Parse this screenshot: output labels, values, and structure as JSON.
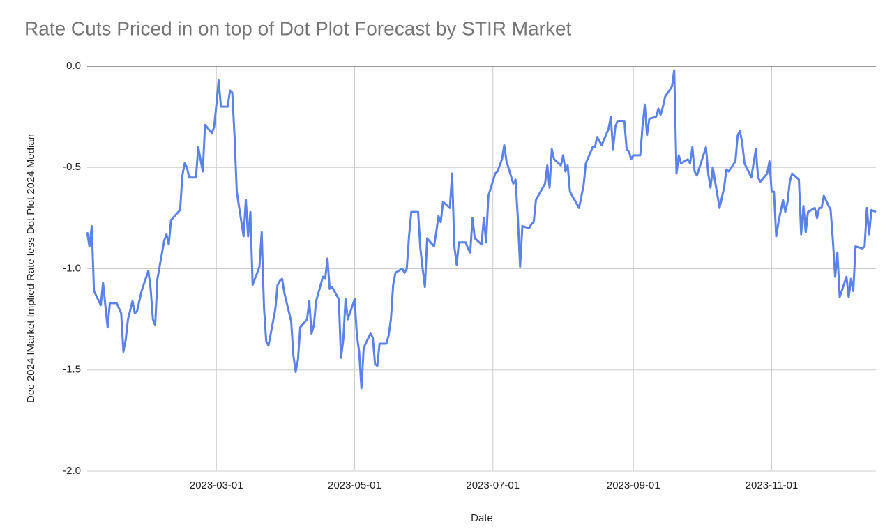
{
  "chart_data": {
    "type": "line",
    "title": "Rate Cuts Priced in on top of Dot Plot Forecast by STIR Market",
    "x_label": "Date",
    "y_label": "Dec 2024 IMarket Implied Rate less Dot Plot 2024 Median",
    "color": "#5b82e8",
    "grid": true,
    "xlim": [
      "2023-01-03",
      "2023-12-17"
    ],
    "xticks": [
      "2023-03-01",
      "2023-05-01",
      "2023-07-01",
      "2023-09-01",
      "2023-11-01"
    ],
    "ylim": [
      -2,
      0
    ],
    "yticks": [
      {
        "value": 0,
        "label": "0.0"
      },
      -0.5,
      {
        "value": -1,
        "label": "-1.0"
      },
      -1.5,
      {
        "value": -2,
        "label": "-2.0"
      }
    ],
    "x": [
      "2023-01-03",
      "2023-01-04",
      "2023-01-05",
      "2023-01-06",
      "2023-01-09",
      "2023-01-10",
      "2023-01-12",
      "2023-01-13",
      "2023-01-16",
      "2023-01-18",
      "2023-01-19",
      "2023-01-20",
      "2023-01-21",
      "2023-01-23",
      "2023-01-24",
      "2023-01-25",
      "2023-01-27",
      "2023-01-30",
      "2023-01-31",
      "2023-02-01",
      "2023-02-02",
      "2023-02-03",
      "2023-02-06",
      "2023-02-07",
      "2023-02-08",
      "2023-02-09",
      "2023-02-13",
      "2023-02-14",
      "2023-02-15",
      "2023-02-16",
      "2023-02-17",
      "2023-02-20",
      "2023-02-21",
      "2023-02-23",
      "2023-02-24",
      "2023-02-27",
      "2023-02-28",
      "2023-03-01",
      "2023-03-02",
      "2023-03-03",
      "2023-03-06",
      "2023-03-07",
      "2023-03-08",
      "2023-03-09",
      "2023-03-10",
      "2023-03-13",
      "2023-03-14",
      "2023-03-15",
      "2023-03-16",
      "2023-03-17",
      "2023-03-20",
      "2023-03-21",
      "2023-03-22",
      "2023-03-23",
      "2023-03-24",
      "2023-03-27",
      "2023-03-28",
      "2023-03-29",
      "2023-03-30",
      "2023-03-31",
      "2023-04-03",
      "2023-04-04",
      "2023-04-05",
      "2023-04-06",
      "2023-04-07",
      "2023-04-10",
      "2023-04-11",
      "2023-04-12",
      "2023-04-13",
      "2023-04-14",
      "2023-04-17",
      "2023-04-18",
      "2023-04-19",
      "2023-04-20",
      "2023-04-21",
      "2023-04-24",
      "2023-04-25",
      "2023-04-26",
      "2023-04-27",
      "2023-04-28",
      "2023-05-01",
      "2023-05-02",
      "2023-05-03",
      "2023-05-04",
      "2023-05-05",
      "2023-05-08",
      "2023-05-09",
      "2023-05-10",
      "2023-05-11",
      "2023-05-12",
      "2023-05-15",
      "2023-05-16",
      "2023-05-17",
      "2023-05-18",
      "2023-05-19",
      "2023-05-22",
      "2023-05-23",
      "2023-05-24",
      "2023-05-25",
      "2023-05-26",
      "2023-05-29",
      "2023-05-30",
      "2023-05-31",
      "2023-06-01",
      "2023-06-02",
      "2023-06-05",
      "2023-06-06",
      "2023-06-07",
      "2023-06-08",
      "2023-06-09",
      "2023-06-12",
      "2023-06-13",
      "2023-06-14",
      "2023-06-15",
      "2023-06-16",
      "2023-06-19",
      "2023-06-20",
      "2023-06-21",
      "2023-06-22",
      "2023-06-23",
      "2023-06-26",
      "2023-06-27",
      "2023-06-28",
      "2023-06-29",
      "2023-07-02",
      "2023-07-03",
      "2023-07-05",
      "2023-07-06",
      "2023-07-07",
      "2023-07-10",
      "2023-07-11",
      "2023-07-12",
      "2023-07-13",
      "2023-07-14",
      "2023-07-17",
      "2023-07-18",
      "2023-07-19",
      "2023-07-20",
      "2023-07-24",
      "2023-07-25",
      "2023-07-26",
      "2023-07-27",
      "2023-07-28",
      "2023-07-31",
      "2023-08-01",
      "2023-08-02",
      "2023-08-03",
      "2023-08-04",
      "2023-08-07",
      "2023-08-08",
      "2023-08-10",
      "2023-08-11",
      "2023-08-14",
      "2023-08-15",
      "2023-08-16",
      "2023-08-18",
      "2023-08-21",
      "2023-08-22",
      "2023-08-23",
      "2023-08-24",
      "2023-08-25",
      "2023-08-28",
      "2023-08-29",
      "2023-08-30",
      "2023-08-31",
      "2023-09-01",
      "2023-09-04",
      "2023-09-05",
      "2023-09-06",
      "2023-09-07",
      "2023-09-08",
      "2023-09-11",
      "2023-09-12",
      "2023-09-13",
      "2023-09-14",
      "2023-09-15",
      "2023-09-18",
      "2023-09-19",
      "2023-09-20",
      "2023-09-21",
      "2023-09-22",
      "2023-09-25",
      "2023-09-26",
      "2023-09-27",
      "2023-09-28",
      "2023-09-29",
      "2023-10-03",
      "2023-10-04",
      "2023-10-05",
      "2023-10-06",
      "2023-10-09",
      "2023-10-11",
      "2023-10-12",
      "2023-10-13",
      "2023-10-16",
      "2023-10-17",
      "2023-10-18",
      "2023-10-19",
      "2023-10-20",
      "2023-10-23",
      "2023-10-24",
      "2023-10-25",
      "2023-10-26",
      "2023-10-27",
      "2023-10-30",
      "2023-10-31",
      "2023-11-01",
      "2023-11-02",
      "2023-11-03",
      "2023-11-04",
      "2023-11-06",
      "2023-11-07",
      "2023-11-08",
      "2023-11-09",
      "2023-11-10",
      "2023-11-13",
      "2023-11-14",
      "2023-11-15",
      "2023-11-16",
      "2023-11-17",
      "2023-11-20",
      "2023-11-21",
      "2023-11-22",
      "2023-11-23",
      "2023-11-24",
      "2023-11-27",
      "2023-11-28",
      "2023-11-29",
      "2023-11-30",
      "2023-12-01",
      "2023-12-04",
      "2023-12-05",
      "2023-12-06",
      "2023-12-07",
      "2023-12-08",
      "2023-12-11",
      "2023-12-12",
      "2023-12-13",
      "2023-12-14",
      "2023-12-15",
      "2023-12-17"
    ],
    "values": [
      -0.82,
      -0.89,
      -0.79,
      -1.11,
      -1.18,
      -1.07,
      -1.29,
      -1.17,
      -1.17,
      -1.22,
      -1.41,
      -1.35,
      -1.25,
      -1.16,
      -1.22,
      -1.21,
      -1.11,
      -1.01,
      -1.1,
      -1.25,
      -1.28,
      -1.05,
      -0.86,
      -0.83,
      -0.88,
      -0.76,
      -0.71,
      -0.54,
      -0.48,
      -0.5,
      -0.55,
      -0.55,
      -0.4,
      -0.52,
      -0.29,
      -0.33,
      -0.3,
      -0.19,
      -0.07,
      -0.2,
      -0.2,
      -0.12,
      -0.13,
      -0.34,
      -0.62,
      -0.84,
      -0.66,
      -0.84,
      -0.72,
      -1.08,
      -0.99,
      -0.82,
      -1.19,
      -1.36,
      -1.38,
      -1.2,
      -1.08,
      -1.06,
      -1.05,
      -1.12,
      -1.26,
      -1.43,
      -1.51,
      -1.45,
      -1.29,
      -1.25,
      -1.16,
      -1.32,
      -1.28,
      -1.16,
      -1.04,
      -1.05,
      -0.95,
      -1.1,
      -1.09,
      -1.15,
      -1.44,
      -1.35,
      -1.15,
      -1.25,
      -1.15,
      -1.33,
      -1.41,
      -1.59,
      -1.39,
      -1.32,
      -1.34,
      -1.47,
      -1.48,
      -1.37,
      -1.37,
      -1.33,
      -1.25,
      -1.08,
      -1.02,
      -1.0,
      -1.02,
      -1.0,
      -0.84,
      -0.72,
      -0.72,
      -0.9,
      -1.0,
      -1.09,
      -0.85,
      -0.89,
      -0.82,
      -0.74,
      -0.77,
      -0.67,
      -0.7,
      -0.53,
      -0.89,
      -0.98,
      -0.87,
      -0.87,
      -0.9,
      -0.92,
      -0.75,
      -0.85,
      -0.88,
      -0.75,
      -0.87,
      -0.64,
      -0.53,
      -0.52,
      -0.46,
      -0.39,
      -0.47,
      -0.58,
      -0.56,
      -0.75,
      -0.99,
      -0.79,
      -0.8,
      -0.78,
      -0.77,
      -0.66,
      -0.58,
      -0.49,
      -0.6,
      -0.41,
      -0.46,
      -0.49,
      -0.44,
      -0.52,
      -0.49,
      -0.62,
      -0.68,
      -0.7,
      -0.59,
      -0.48,
      -0.4,
      -0.4,
      -0.35,
      -0.39,
      -0.31,
      -0.25,
      -0.41,
      -0.3,
      -0.27,
      -0.27,
      -0.41,
      -0.42,
      -0.46,
      -0.44,
      -0.44,
      -0.3,
      -0.19,
      -0.34,
      -0.26,
      -0.25,
      -0.21,
      -0.24,
      -0.2,
      -0.15,
      -0.1,
      -0.02,
      -0.53,
      -0.44,
      -0.48,
      -0.46,
      -0.48,
      -0.4,
      -0.52,
      -0.54,
      -0.4,
      -0.53,
      -0.6,
      -0.5,
      -0.7,
      -0.6,
      -0.51,
      -0.52,
      -0.47,
      -0.34,
      -0.32,
      -0.38,
      -0.48,
      -0.55,
      -0.48,
      -0.41,
      -0.55,
      -0.57,
      -0.53,
      -0.47,
      -0.62,
      -0.62,
      -0.84,
      -0.77,
      -0.66,
      -0.72,
      -0.67,
      -0.57,
      -0.53,
      -0.56,
      -0.83,
      -0.69,
      -0.82,
      -0.72,
      -0.7,
      -0.75,
      -0.7,
      -0.7,
      -0.64,
      -0.71,
      -0.86,
      -1.04,
      -0.92,
      -1.14,
      -1.04,
      -1.14,
      -1.05,
      -1.11,
      -0.89,
      -0.9,
      -0.89,
      -0.7,
      -0.83,
      -0.71,
      -0.72
    ]
  }
}
